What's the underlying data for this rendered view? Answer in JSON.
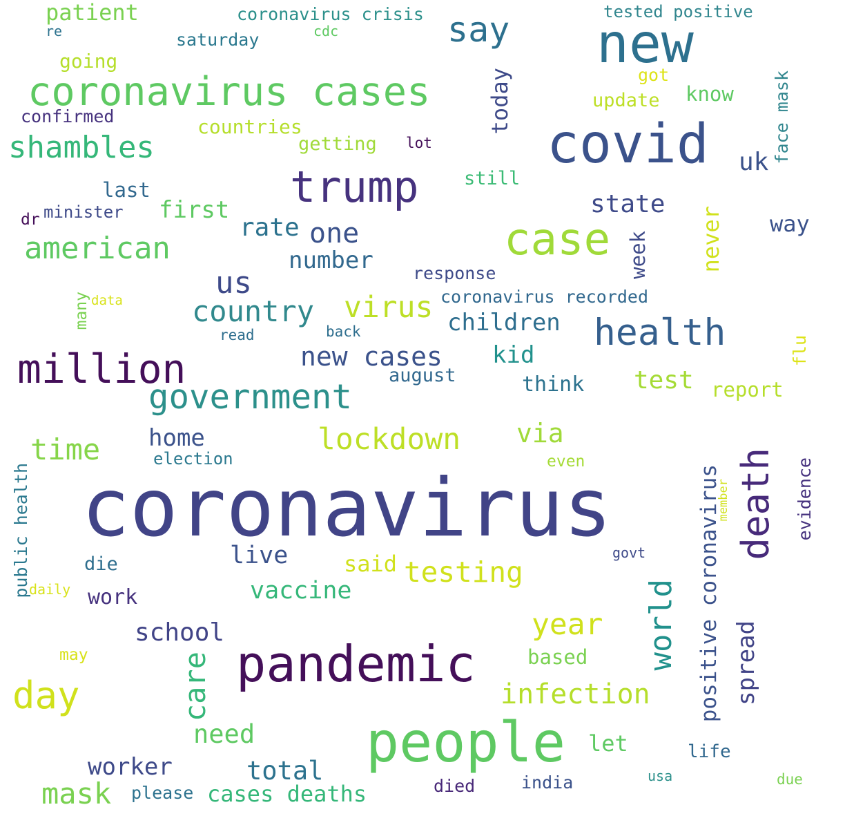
{
  "words": [
    {
      "text": "coronavirus",
      "color": "#414487"
    },
    {
      "text": "people",
      "color": "#5ec962"
    },
    {
      "text": "pandemic",
      "color": "#440f59"
    },
    {
      "text": "new",
      "color": "#2d708e"
    },
    {
      "text": "covid",
      "color": "#3b528b"
    },
    {
      "text": "coronavirus cases",
      "color": "#5ec962"
    },
    {
      "text": "case",
      "color": "#a0da39"
    },
    {
      "text": "trump",
      "color": "#46327e"
    },
    {
      "text": "million",
      "color": "#440f59"
    },
    {
      "text": "health",
      "color": "#355f8d"
    },
    {
      "text": "government",
      "color": "#2c908b"
    },
    {
      "text": "death",
      "color": "#472a7a"
    },
    {
      "text": "say",
      "color": "#2d708e"
    },
    {
      "text": "shambles",
      "color": "#35b779"
    },
    {
      "text": "american",
      "color": "#5ec962"
    },
    {
      "text": "day",
      "color": "#d0e11c"
    },
    {
      "text": "lockdown",
      "color": "#bddf26"
    },
    {
      "text": "virus",
      "color": "#bddf26"
    },
    {
      "text": "country",
      "color": "#31898d"
    },
    {
      "text": "new cases",
      "color": "#3b528b"
    },
    {
      "text": "time",
      "color": "#86d549"
    },
    {
      "text": "world",
      "color": "#21918c"
    },
    {
      "text": "positive coronavirus",
      "color": "#3b528b"
    },
    {
      "text": "testing",
      "color": "#d0e11c"
    },
    {
      "text": "year",
      "color": "#d0e11c"
    },
    {
      "text": "infection",
      "color": "#b5de2b"
    },
    {
      "text": "mask",
      "color": "#7ad151"
    },
    {
      "text": "us",
      "color": "#3e4a89"
    },
    {
      "text": "one",
      "color": "#3b528b"
    },
    {
      "text": "state",
      "color": "#3e4a89"
    },
    {
      "text": "rate",
      "color": "#2c728e"
    },
    {
      "text": "first",
      "color": "#5ec962"
    },
    {
      "text": "number",
      "color": "#31688e"
    },
    {
      "text": "children",
      "color": "#2e6e8e"
    },
    {
      "text": "test",
      "color": "#a5db36"
    },
    {
      "text": "home",
      "color": "#3b528b"
    },
    {
      "text": "via",
      "color": "#a0da39"
    },
    {
      "text": "vaccine",
      "color": "#35b779"
    },
    {
      "text": "school",
      "color": "#414487"
    },
    {
      "text": "care",
      "color": "#35b779"
    },
    {
      "text": "spread",
      "color": "#414487"
    },
    {
      "text": "need",
      "color": "#5ec962"
    },
    {
      "text": "total",
      "color": "#2c728e"
    },
    {
      "text": "worker",
      "color": "#3e4a89"
    },
    {
      "text": "live",
      "color": "#3b528b"
    },
    {
      "text": "cases deaths",
      "color": "#35b779"
    },
    {
      "text": "patient",
      "color": "#7ad151"
    },
    {
      "text": "coronavirus crisis",
      "color": "#2c908b"
    },
    {
      "text": "tested positive",
      "color": "#31868e"
    },
    {
      "text": "today",
      "color": "#3e4a89"
    },
    {
      "text": "uk",
      "color": "#3b528b"
    },
    {
      "text": "face mask",
      "color": "#31868e"
    },
    {
      "text": "week",
      "color": "#3e4a89"
    },
    {
      "text": "never",
      "color": "#d0e11c"
    },
    {
      "text": "way",
      "color": "#3b528b"
    },
    {
      "text": "kid",
      "color": "#21918c"
    },
    {
      "text": "think",
      "color": "#2c728e"
    },
    {
      "text": "report",
      "color": "#b5de2b"
    },
    {
      "text": "said",
      "color": "#d0e11c"
    },
    {
      "text": "work",
      "color": "#46327e"
    },
    {
      "text": "die",
      "color": "#2e6e8e"
    },
    {
      "text": "let",
      "color": "#5ec962"
    },
    {
      "text": "based",
      "color": "#7ad151"
    },
    {
      "text": "going",
      "color": "#b5de2b"
    },
    {
      "text": "countries",
      "color": "#b5de2b"
    },
    {
      "text": "getting",
      "color": "#a0da39"
    },
    {
      "text": "last",
      "color": "#31688e"
    },
    {
      "text": "august",
      "color": "#31688e"
    },
    {
      "text": "response",
      "color": "#3e4a89"
    },
    {
      "text": "coronavirus recorded",
      "color": "#31688e"
    },
    {
      "text": "evidence",
      "color": "#46327e"
    },
    {
      "text": "public health",
      "color": "#2a788e"
    },
    {
      "text": "election",
      "color": "#2a788e"
    },
    {
      "text": "update",
      "color": "#bddf26"
    },
    {
      "text": "know",
      "color": "#5ec962"
    },
    {
      "text": "confirmed",
      "color": "#46327e"
    },
    {
      "text": "still",
      "color": "#3bbb75"
    },
    {
      "text": "minister",
      "color": "#3e4a89"
    },
    {
      "text": "saturday",
      "color": "#2a788e"
    },
    {
      "text": "life",
      "color": "#31688e"
    },
    {
      "text": "please",
      "color": "#2c728e"
    },
    {
      "text": "india",
      "color": "#3b528b"
    },
    {
      "text": "died",
      "color": "#482878"
    },
    {
      "text": "got",
      "color": "#dde318"
    },
    {
      "text": "many",
      "color": "#7ad151"
    },
    {
      "text": "even",
      "color": "#a5db36"
    },
    {
      "text": "flu",
      "color": "#dde318"
    },
    {
      "text": "lot",
      "color": "#440f59"
    },
    {
      "text": "dr",
      "color": "#440f59"
    },
    {
      "text": "re",
      "color": "#2c728e"
    },
    {
      "text": "cdc",
      "color": "#5ec962"
    },
    {
      "text": "data",
      "color": "#d8e219"
    },
    {
      "text": "read",
      "color": "#2e6e8e"
    },
    {
      "text": "back",
      "color": "#2e6e8e"
    },
    {
      "text": "govt",
      "color": "#3e4a89"
    },
    {
      "text": "member",
      "color": "#d0e11c"
    },
    {
      "text": "usa",
      "color": "#2c908b"
    },
    {
      "text": "due",
      "color": "#7ad151"
    },
    {
      "text": "may",
      "color": "#d8e219"
    },
    {
      "text": "daily",
      "color": "#d8e219"
    }
  ]
}
